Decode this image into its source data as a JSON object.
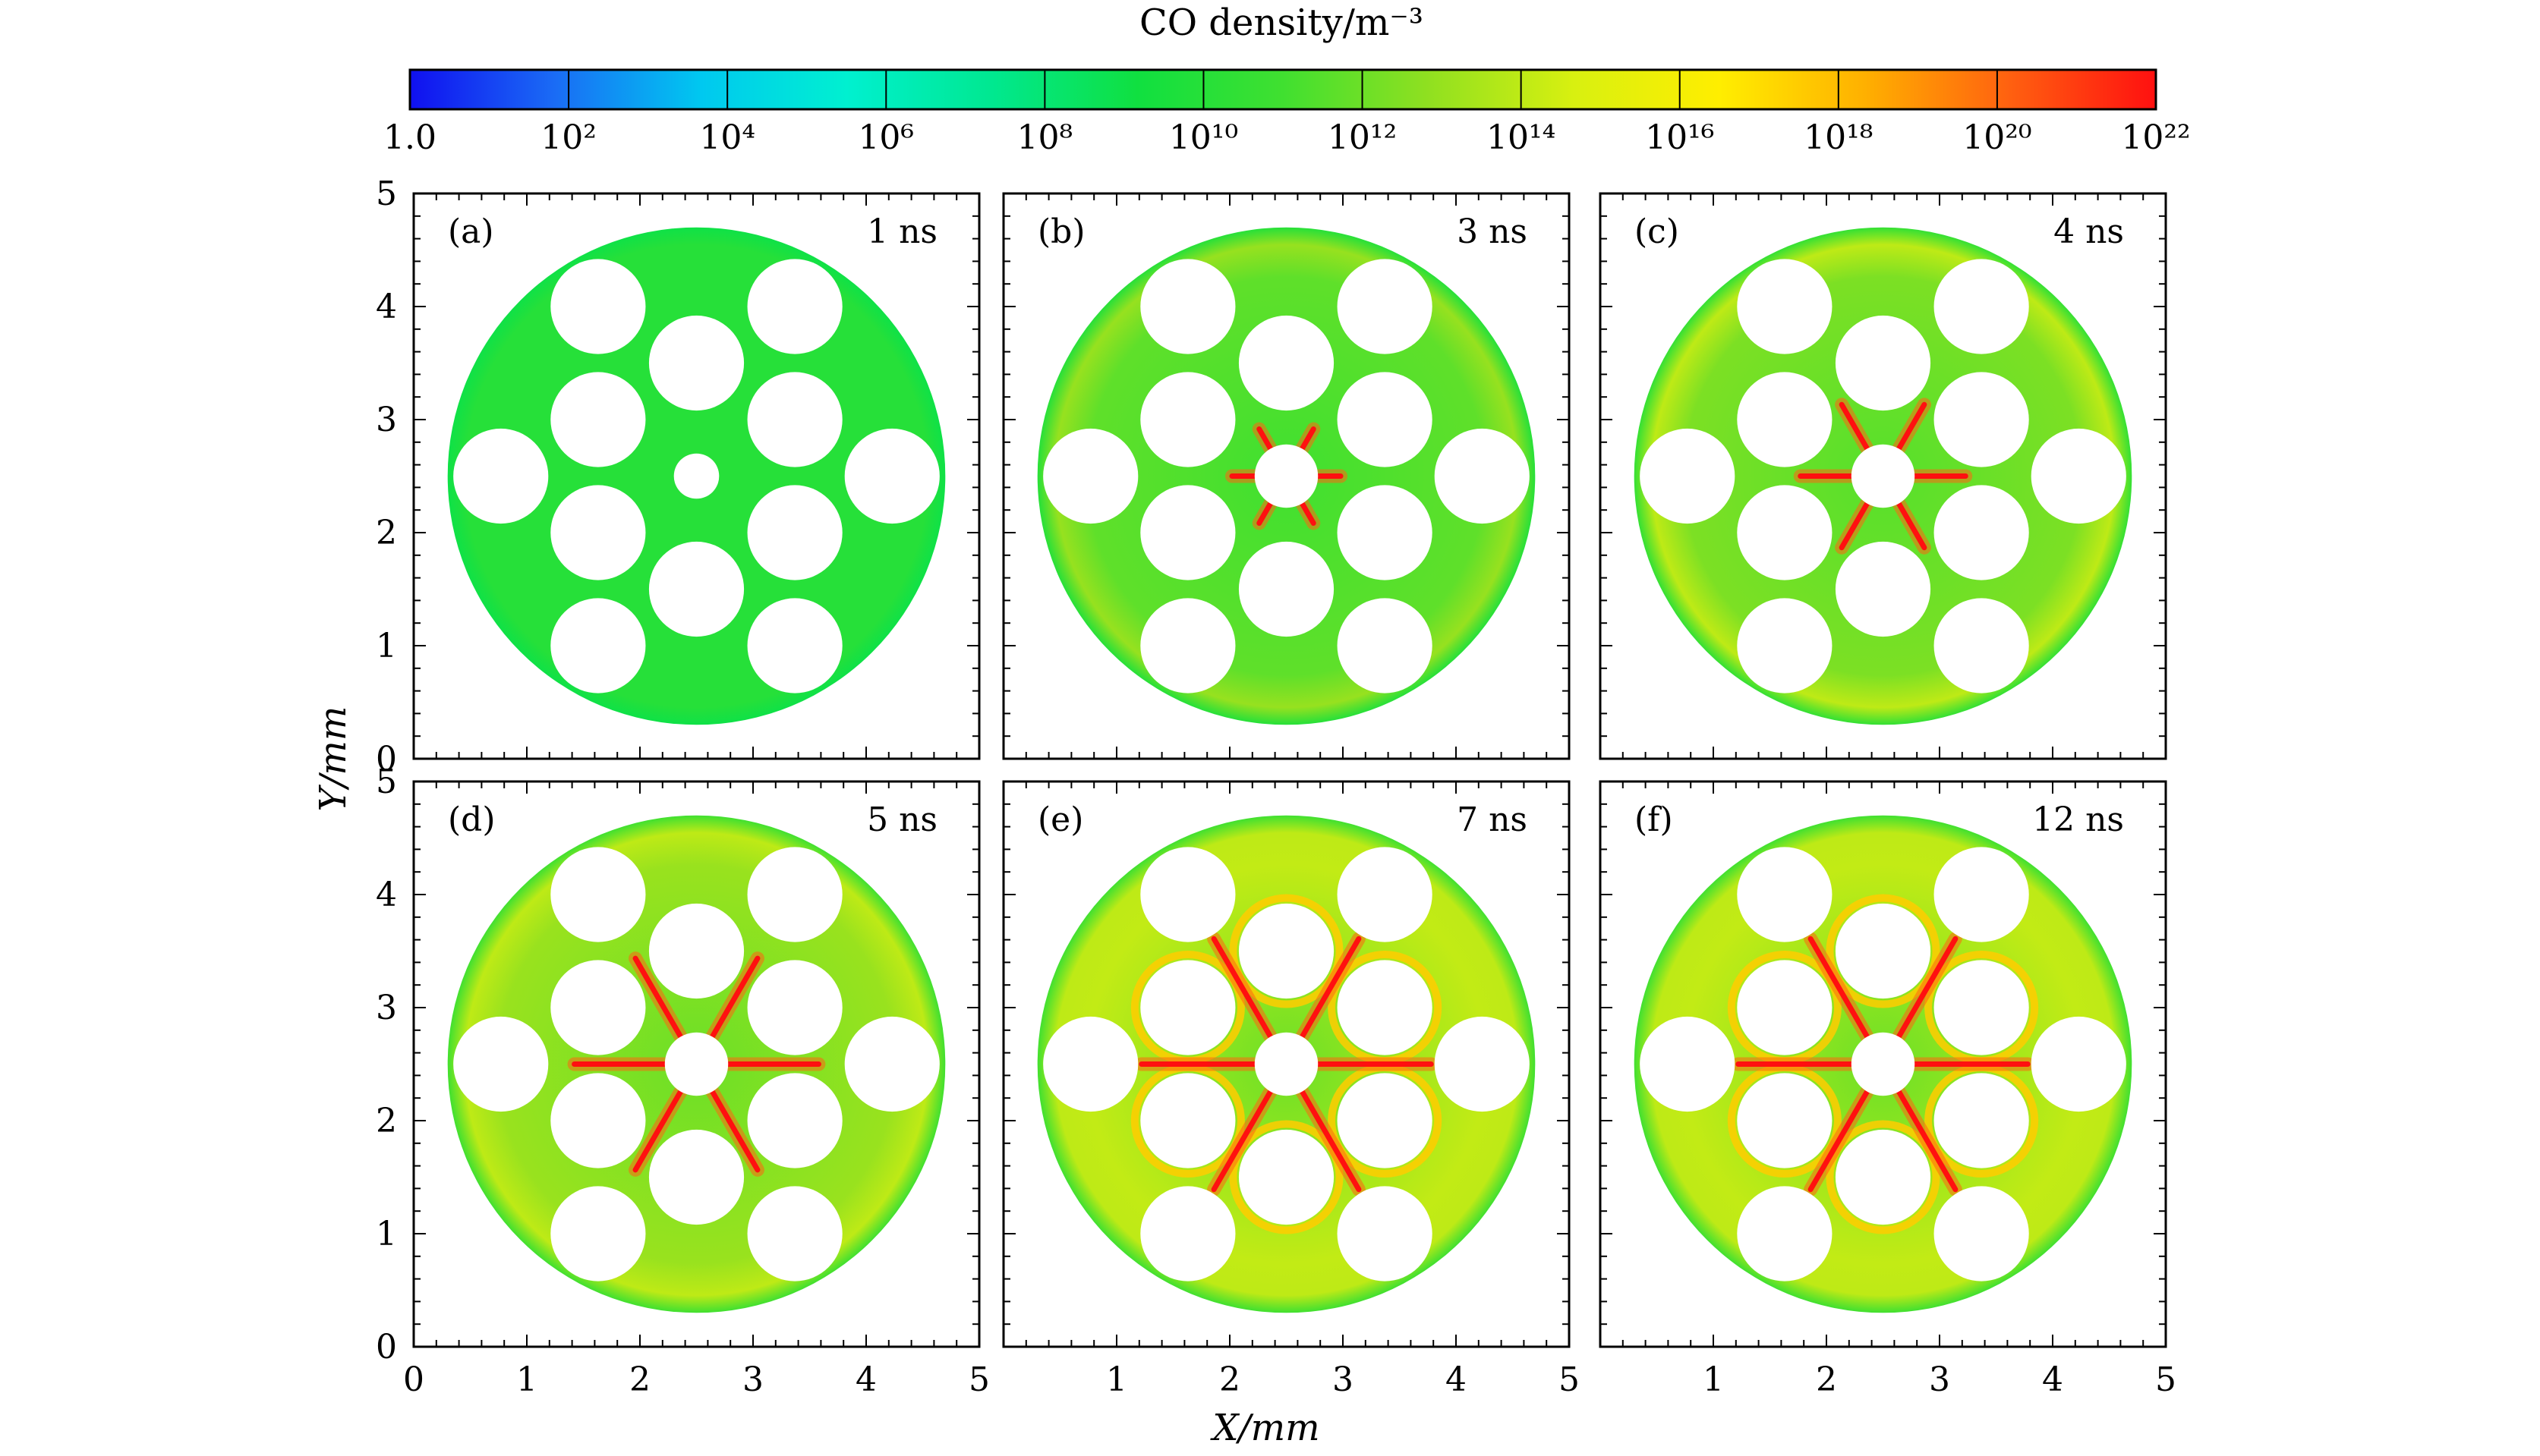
{
  "chart_data": {
    "type": "heatmap",
    "colorbar": {
      "title": "CO density/m⁻³",
      "scale": "log",
      "range": [
        1,
        1e+22
      ],
      "tick_labels": [
        "1.0",
        "10²",
        "10⁴",
        "10⁶",
        "10⁸",
        "10¹⁰",
        "10¹²",
        "10¹⁴",
        "10¹⁶",
        "10¹⁸",
        "10²⁰",
        "10²²"
      ],
      "colors": [
        "#1010f0",
        "#1a6cf5",
        "#00c8f0",
        "#00f0d0",
        "#00e890",
        "#10e040",
        "#40e030",
        "#90e020",
        "#d8f010",
        "#ffee00",
        "#ffb000",
        "#ff6010",
        "#ff1010"
      ]
    },
    "xlabel": "X/mm",
    "ylabel": "Y/mm",
    "xlim": [
      0,
      5
    ],
    "ylim": [
      0,
      5
    ],
    "x_ticks": [
      "0",
      "1",
      "2",
      "3",
      "4",
      "5"
    ],
    "y_ticks": [
      "0",
      "1",
      "2",
      "3",
      "4",
      "5"
    ],
    "domain": {
      "outer_radius": 2.2,
      "center": [
        2.5,
        2.5
      ],
      "center_hole_radius": 0.28,
      "holes": [
        {
          "x": 1.63,
          "y": 4.0,
          "r": 0.42
        },
        {
          "x": 3.37,
          "y": 4.0,
          "r": 0.42
        },
        {
          "x": 2.5,
          "y": 3.5,
          "r": 0.42
        },
        {
          "x": 1.63,
          "y": 3.0,
          "r": 0.42
        },
        {
          "x": 3.37,
          "y": 3.0,
          "r": 0.42
        },
        {
          "x": 0.77,
          "y": 2.5,
          "r": 0.42
        },
        {
          "x": 4.23,
          "y": 2.5,
          "r": 0.42
        },
        {
          "x": 1.63,
          "y": 2.0,
          "r": 0.42
        },
        {
          "x": 3.37,
          "y": 2.0,
          "r": 0.42
        },
        {
          "x": 2.5,
          "y": 1.5,
          "r": 0.42
        },
        {
          "x": 1.63,
          "y": 1.0,
          "r": 0.42
        },
        {
          "x": 3.37,
          "y": 1.0,
          "r": 0.42
        }
      ]
    },
    "panels": [
      {
        "label": "(a)",
        "time": "1 ns",
        "center_hole_radius": 0.2,
        "streamer_length": 0,
        "background_log_density": 10,
        "rim_log_density": 10
      },
      {
        "label": "(b)",
        "time": "3 ns",
        "center_hole_radius": 0.28,
        "streamer_length": 0.2,
        "background_log_density": 11,
        "rim_log_density": 13
      },
      {
        "label": "(c)",
        "time": "4 ns",
        "center_hole_radius": 0.28,
        "streamer_length": 0.45,
        "background_log_density": 11.5,
        "rim_log_density": 14
      },
      {
        "label": "(d)",
        "time": "5 ns",
        "center_hole_radius": 0.28,
        "streamer_length": 0.8,
        "background_log_density": 12,
        "rim_log_density": 15
      },
      {
        "label": "(e)",
        "time": "7 ns",
        "center_hole_radius": 0.28,
        "streamer_length": 1.0,
        "background_log_density": 12,
        "rim_log_density": 18
      },
      {
        "label": "(f)",
        "time": "12 ns",
        "center_hole_radius": 0.28,
        "streamer_length": 1.0,
        "background_log_density": 12,
        "rim_log_density": 18
      }
    ]
  }
}
